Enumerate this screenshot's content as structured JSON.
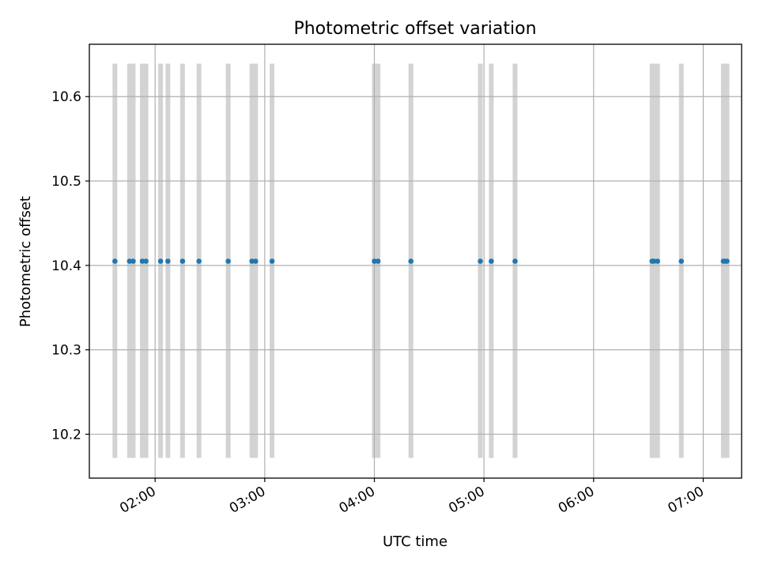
{
  "chart_data": {
    "type": "scatter",
    "title": "Photometric offset variation",
    "xlabel": "UTC time",
    "ylabel": "Photometric offset",
    "x_tick_labels": [
      "02:00",
      "03:00",
      "04:00",
      "05:00",
      "06:00",
      "07:00"
    ],
    "y_tick_labels": [
      "10.2",
      "10.3",
      "10.4",
      "10.5",
      "10.6"
    ],
    "y_ticks": [
      10.2,
      10.3,
      10.4,
      10.5,
      10.6
    ],
    "xlim": [
      "01:24",
      "07:21"
    ],
    "ylim": [
      10.148,
      10.662
    ],
    "grid": true,
    "marker_color": "#1f77b4",
    "band_color": "#d3d3d3",
    "band_range": [
      10.172,
      10.639
    ],
    "x": [
      "01:38",
      "01:46",
      "01:48",
      "01:53",
      "01:55",
      "02:03",
      "02:07",
      "02:15",
      "02:24",
      "02:40",
      "02:53",
      "02:55",
      "03:04",
      "04:00",
      "04:02",
      "04:20",
      "04:58",
      "05:04",
      "05:17",
      "06:32",
      "06:33",
      "06:35",
      "06:48",
      "07:11",
      "07:12",
      "07:13"
    ],
    "y": [
      10.405,
      10.405,
      10.405,
      10.405,
      10.405,
      10.405,
      10.405,
      10.405,
      10.405,
      10.405,
      10.405,
      10.405,
      10.405,
      10.405,
      10.405,
      10.405,
      10.405,
      10.405,
      10.405,
      10.405,
      10.405,
      10.405,
      10.405,
      10.405,
      10.405,
      10.405
    ]
  }
}
